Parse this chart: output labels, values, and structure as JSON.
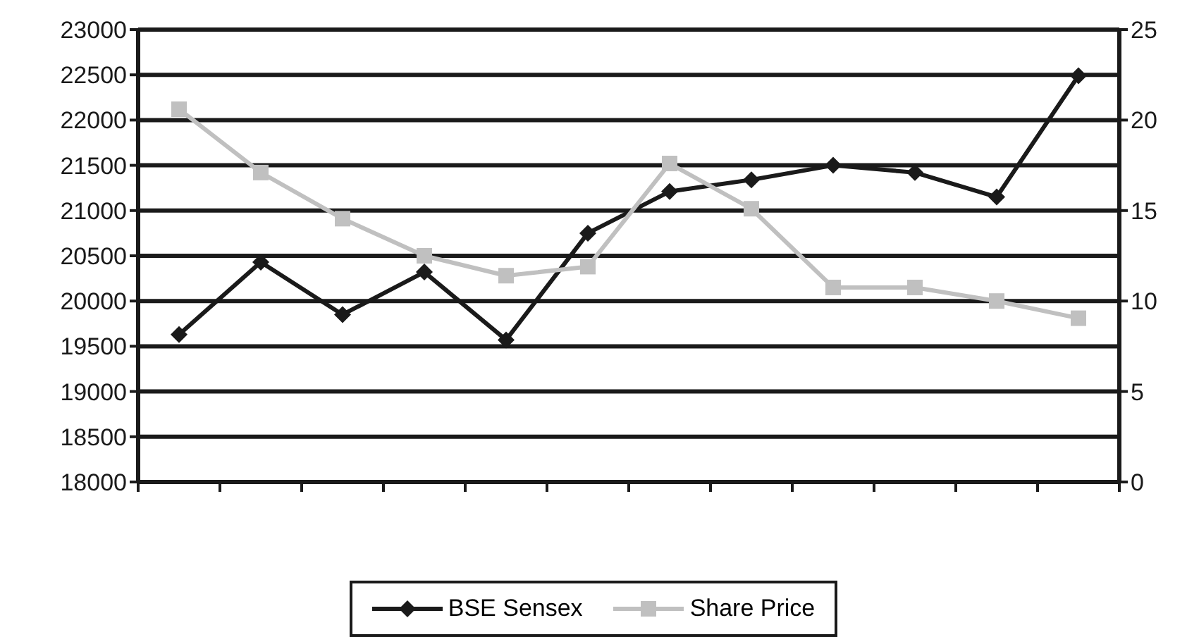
{
  "chart_data": {
    "type": "line",
    "categories": [
      null,
      null,
      null,
      null,
      null,
      null,
      null,
      null,
      null,
      null,
      null,
      null
    ],
    "series": [
      {
        "name": "BSE Sensex",
        "color": "#1a1a1a",
        "marker": "diamond",
        "values": [
          19630,
          20430,
          19850,
          20320,
          19570,
          20750,
          21210,
          21340,
          21500,
          21420,
          21150,
          22490
        ]
      },
      {
        "name": "Share Price",
        "color": "#c0c0c0",
        "marker": "square",
        "axis": "y2",
        "values": [
          20.6,
          17.1,
          14.55,
          12.5,
          11.4,
          11.9,
          17.6,
          15.1,
          10.75,
          10.75,
          10,
          9.05
        ]
      }
    ],
    "ylim": [
      18000,
      23000
    ],
    "yticks": [
      18000,
      18500,
      19000,
      19500,
      20000,
      20500,
      21000,
      21500,
      22000,
      22500,
      23000
    ],
    "y2lim": [
      0,
      25
    ],
    "y2ticks": [
      0,
      5,
      10,
      15,
      20,
      25
    ],
    "grid": "y",
    "legend": "bottom"
  }
}
